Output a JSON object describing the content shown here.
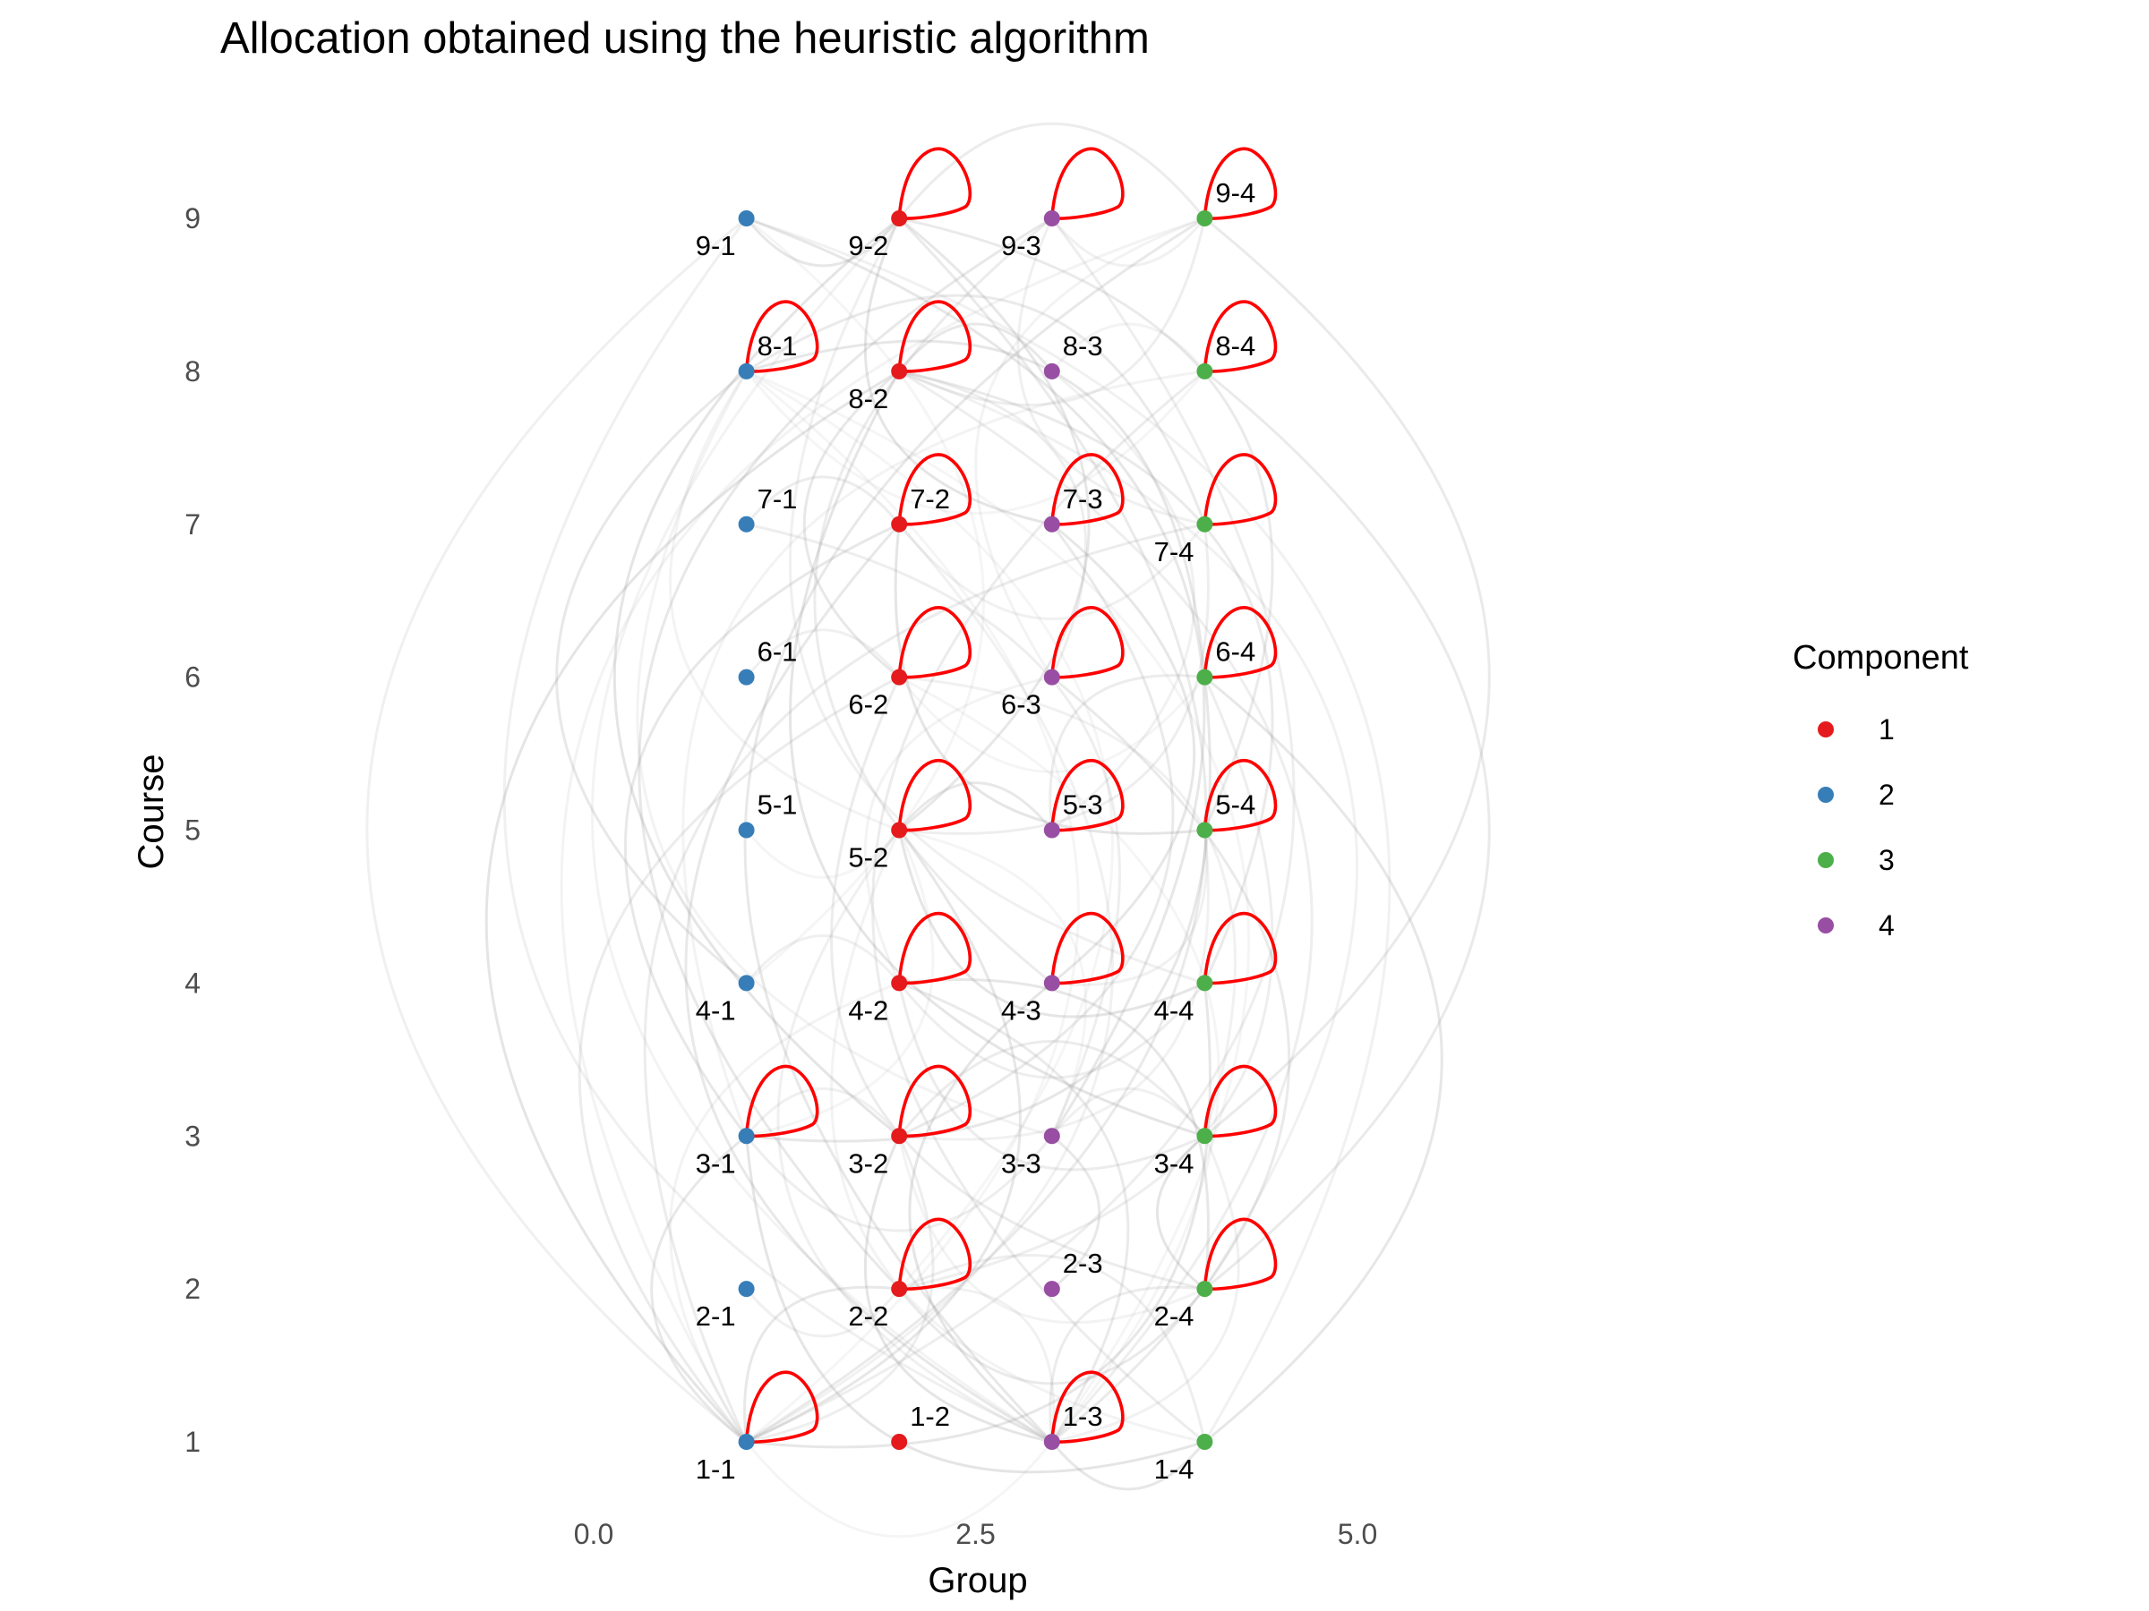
{
  "chart_data": {
    "type": "scatter",
    "title": "Allocation obtained using the heuristic algorithm",
    "xlabel": "Group",
    "ylabel": "Course",
    "xlim": [
      -2.3,
      7.2
    ],
    "ylim": [
      0.75,
      9.75
    ],
    "x_ticks": [
      0.0,
      2.5,
      5.0
    ],
    "x_tick_labels": [
      "0.0",
      "2.5",
      "5.0"
    ],
    "y_ticks": [
      1,
      2,
      3,
      4,
      5,
      6,
      7,
      8,
      9
    ],
    "y_tick_labels": [
      "1",
      "2",
      "3",
      "4",
      "5",
      "6",
      "7",
      "8",
      "9"
    ],
    "grid": false,
    "legend": {
      "title": "Component",
      "position": "right",
      "entries": [
        {
          "label": "1",
          "color": "#E41A1C"
        },
        {
          "label": "2",
          "color": "#377EB8"
        },
        {
          "label": "3",
          "color": "#4DAF4A"
        },
        {
          "label": "4",
          "color": "#984EA3"
        }
      ]
    },
    "self_loop_color": "#FF0000",
    "edge_color": "#9a9a9a",
    "nodes": [
      {
        "label": "1-1",
        "x": 1,
        "y": 1,
        "component": "2",
        "self_loop": true,
        "label_pos": "below-left"
      },
      {
        "label": "1-2",
        "x": 2,
        "y": 1,
        "component": "1",
        "self_loop": false,
        "label_pos": "above-right"
      },
      {
        "label": "1-3",
        "x": 3,
        "y": 1,
        "component": "4",
        "self_loop": true,
        "label_pos": "above-right"
      },
      {
        "label": "1-4",
        "x": 4,
        "y": 1,
        "component": "3",
        "self_loop": false,
        "label_pos": "below-left"
      },
      {
        "label": "2-1",
        "x": 1,
        "y": 2,
        "component": "2",
        "self_loop": false,
        "label_pos": "below-left"
      },
      {
        "label": "2-2",
        "x": 2,
        "y": 2,
        "component": "1",
        "self_loop": true,
        "label_pos": "below-left"
      },
      {
        "label": "2-3",
        "x": 3,
        "y": 2,
        "component": "4",
        "self_loop": false,
        "label_pos": "above-right"
      },
      {
        "label": "2-4",
        "x": 4,
        "y": 2,
        "component": "3",
        "self_loop": true,
        "label_pos": "below-left"
      },
      {
        "label": "3-1",
        "x": 1,
        "y": 3,
        "component": "2",
        "self_loop": true,
        "label_pos": "below-left"
      },
      {
        "label": "3-2",
        "x": 2,
        "y": 3,
        "component": "1",
        "self_loop": true,
        "label_pos": "below-left"
      },
      {
        "label": "3-3",
        "x": 3,
        "y": 3,
        "component": "4",
        "self_loop": false,
        "label_pos": "below-left"
      },
      {
        "label": "3-4",
        "x": 4,
        "y": 3,
        "component": "3",
        "self_loop": true,
        "label_pos": "below-left"
      },
      {
        "label": "4-1",
        "x": 1,
        "y": 4,
        "component": "2",
        "self_loop": false,
        "label_pos": "below-left"
      },
      {
        "label": "4-2",
        "x": 2,
        "y": 4,
        "component": "1",
        "self_loop": true,
        "label_pos": "below-left"
      },
      {
        "label": "4-3",
        "x": 3,
        "y": 4,
        "component": "4",
        "self_loop": true,
        "label_pos": "below-left"
      },
      {
        "label": "4-4",
        "x": 4,
        "y": 4,
        "component": "3",
        "self_loop": true,
        "label_pos": "below-left"
      },
      {
        "label": "5-1",
        "x": 1,
        "y": 5,
        "component": "2",
        "self_loop": false,
        "label_pos": "above-right"
      },
      {
        "label": "5-2",
        "x": 2,
        "y": 5,
        "component": "1",
        "self_loop": true,
        "label_pos": "below-left"
      },
      {
        "label": "5-3",
        "x": 3,
        "y": 5,
        "component": "4",
        "self_loop": true,
        "label_pos": "above-right"
      },
      {
        "label": "5-4",
        "x": 4,
        "y": 5,
        "component": "3",
        "self_loop": true,
        "label_pos": "above-right"
      },
      {
        "label": "6-1",
        "x": 1,
        "y": 6,
        "component": "2",
        "self_loop": false,
        "label_pos": "above-right"
      },
      {
        "label": "6-2",
        "x": 2,
        "y": 6,
        "component": "1",
        "self_loop": true,
        "label_pos": "below-left"
      },
      {
        "label": "6-3",
        "x": 3,
        "y": 6,
        "component": "4",
        "self_loop": true,
        "label_pos": "below-left"
      },
      {
        "label": "6-4",
        "x": 4,
        "y": 6,
        "component": "3",
        "self_loop": true,
        "label_pos": "above-right"
      },
      {
        "label": "7-1",
        "x": 1,
        "y": 7,
        "component": "2",
        "self_loop": false,
        "label_pos": "above-right"
      },
      {
        "label": "7-2",
        "x": 2,
        "y": 7,
        "component": "1",
        "self_loop": true,
        "label_pos": "above-right"
      },
      {
        "label": "7-3",
        "x": 3,
        "y": 7,
        "component": "4",
        "self_loop": true,
        "label_pos": "above-right"
      },
      {
        "label": "7-4",
        "x": 4,
        "y": 7,
        "component": "3",
        "self_loop": true,
        "label_pos": "below-left"
      },
      {
        "label": "8-1",
        "x": 1,
        "y": 8,
        "component": "2",
        "self_loop": true,
        "label_pos": "above-right"
      },
      {
        "label": "8-2",
        "x": 2,
        "y": 8,
        "component": "1",
        "self_loop": true,
        "label_pos": "below-left"
      },
      {
        "label": "8-3",
        "x": 3,
        "y": 8,
        "component": "4",
        "self_loop": false,
        "label_pos": "above-right"
      },
      {
        "label": "8-4",
        "x": 4,
        "y": 8,
        "component": "3",
        "self_loop": true,
        "label_pos": "above-right"
      },
      {
        "label": "9-1",
        "x": 1,
        "y": 9,
        "component": "2",
        "self_loop": false,
        "label_pos": "below-left"
      },
      {
        "label": "9-2",
        "x": 2,
        "y": 9,
        "component": "1",
        "self_loop": true,
        "label_pos": "below-left"
      },
      {
        "label": "9-3",
        "x": 3,
        "y": 9,
        "component": "4",
        "self_loop": true,
        "label_pos": "below-left"
      },
      {
        "label": "9-4",
        "x": 4,
        "y": 9,
        "component": "3",
        "self_loop": true,
        "label_pos": "above-right"
      }
    ],
    "edges": [
      [
        "1-1",
        "1-3"
      ],
      [
        "1-1",
        "2-2"
      ],
      [
        "1-1",
        "3-2"
      ],
      [
        "1-1",
        "4-2"
      ],
      [
        "1-1",
        "5-2"
      ],
      [
        "1-1",
        "6-2"
      ],
      [
        "1-1",
        "7-2"
      ],
      [
        "1-1",
        "8-2"
      ],
      [
        "1-1",
        "9-2"
      ],
      [
        "1-1",
        "9-1"
      ],
      [
        "1-1",
        "8-1"
      ],
      [
        "1-1",
        "3-1"
      ],
      [
        "1-1",
        "9-3"
      ],
      [
        "1-1",
        "9-4"
      ],
      [
        "1-1",
        "4-4"
      ],
      [
        "1-1",
        "7-4"
      ],
      [
        "1-3",
        "2-2"
      ],
      [
        "1-3",
        "3-2"
      ],
      [
        "1-3",
        "4-2"
      ],
      [
        "1-3",
        "5-2"
      ],
      [
        "1-3",
        "6-2"
      ],
      [
        "1-3",
        "7-2"
      ],
      [
        "1-3",
        "8-2"
      ],
      [
        "1-3",
        "9-2"
      ],
      [
        "1-3",
        "1-4"
      ],
      [
        "1-3",
        "2-4"
      ],
      [
        "1-3",
        "3-4"
      ],
      [
        "1-3",
        "4-3"
      ],
      [
        "1-3",
        "6-3"
      ],
      [
        "1-3",
        "9-1"
      ],
      [
        "1-3",
        "8-1"
      ],
      [
        "1-3",
        "9-4"
      ],
      [
        "1-4",
        "2-2"
      ],
      [
        "1-4",
        "5-2"
      ],
      [
        "1-4",
        "6-4"
      ],
      [
        "1-4",
        "8-4"
      ],
      [
        "1-4",
        "9-1"
      ],
      [
        "1-4",
        "3-1"
      ],
      [
        "2-2",
        "2-4"
      ],
      [
        "2-2",
        "2-1"
      ],
      [
        "2-2",
        "8-1"
      ],
      [
        "2-2",
        "9-3"
      ],
      [
        "2-2",
        "6-4"
      ],
      [
        "2-4",
        "3-2"
      ],
      [
        "2-4",
        "4-2"
      ],
      [
        "2-4",
        "6-2"
      ],
      [
        "2-4",
        "8-2"
      ],
      [
        "2-4",
        "3-4"
      ],
      [
        "2-4",
        "8-4"
      ],
      [
        "3-1",
        "3-2"
      ],
      [
        "3-1",
        "5-2"
      ],
      [
        "3-1",
        "7-2"
      ],
      [
        "3-1",
        "3-3"
      ],
      [
        "3-1",
        "8-4"
      ],
      [
        "3-1",
        "6-4"
      ],
      [
        "3-2",
        "3-4"
      ],
      [
        "3-2",
        "5-4"
      ],
      [
        "3-2",
        "9-2"
      ],
      [
        "3-2",
        "7-3"
      ],
      [
        "3-3",
        "3-4"
      ],
      [
        "3-3",
        "5-2"
      ],
      [
        "3-3",
        "2-3"
      ],
      [
        "3-3",
        "7-1"
      ],
      [
        "3-3",
        "8-1"
      ],
      [
        "3-3",
        "9-1"
      ],
      [
        "3-4",
        "4-2"
      ],
      [
        "3-4",
        "6-2"
      ],
      [
        "3-4",
        "8-2"
      ],
      [
        "3-4",
        "9-4"
      ],
      [
        "4-1",
        "4-2"
      ],
      [
        "4-1",
        "9-1"
      ],
      [
        "4-1",
        "8-1"
      ],
      [
        "4-2",
        "4-4"
      ],
      [
        "4-2",
        "6-3"
      ],
      [
        "4-3",
        "7-3"
      ],
      [
        "4-3",
        "9-3"
      ],
      [
        "4-3",
        "5-4"
      ],
      [
        "4-4",
        "5-2"
      ],
      [
        "4-4",
        "8-2"
      ],
      [
        "4-4",
        "9-2"
      ],
      [
        "5-1",
        "5-2"
      ],
      [
        "5-2",
        "5-3"
      ],
      [
        "5-2",
        "7-4"
      ],
      [
        "5-2",
        "8-1"
      ],
      [
        "5-2",
        "9-2"
      ],
      [
        "5-3",
        "6-4"
      ],
      [
        "5-3",
        "8-3"
      ],
      [
        "5-4",
        "7-2"
      ],
      [
        "5-4",
        "9-2"
      ],
      [
        "6-1",
        "6-2"
      ],
      [
        "6-2",
        "6-4"
      ],
      [
        "6-2",
        "8-2"
      ],
      [
        "6-3",
        "8-2"
      ],
      [
        "6-3",
        "9-4"
      ],
      [
        "6-4",
        "8-1"
      ],
      [
        "7-1",
        "7-2"
      ],
      [
        "7-2",
        "7-4"
      ],
      [
        "7-3",
        "9-2"
      ],
      [
        "7-4",
        "8-1"
      ],
      [
        "7-4",
        "9-3"
      ],
      [
        "8-1",
        "8-4"
      ],
      [
        "8-2",
        "8-3"
      ],
      [
        "8-2",
        "9-4"
      ],
      [
        "8-3",
        "8-4"
      ],
      [
        "9-1",
        "9-2"
      ],
      [
        "9-2",
        "9-4"
      ],
      [
        "9-3",
        "9-4"
      ]
    ]
  }
}
